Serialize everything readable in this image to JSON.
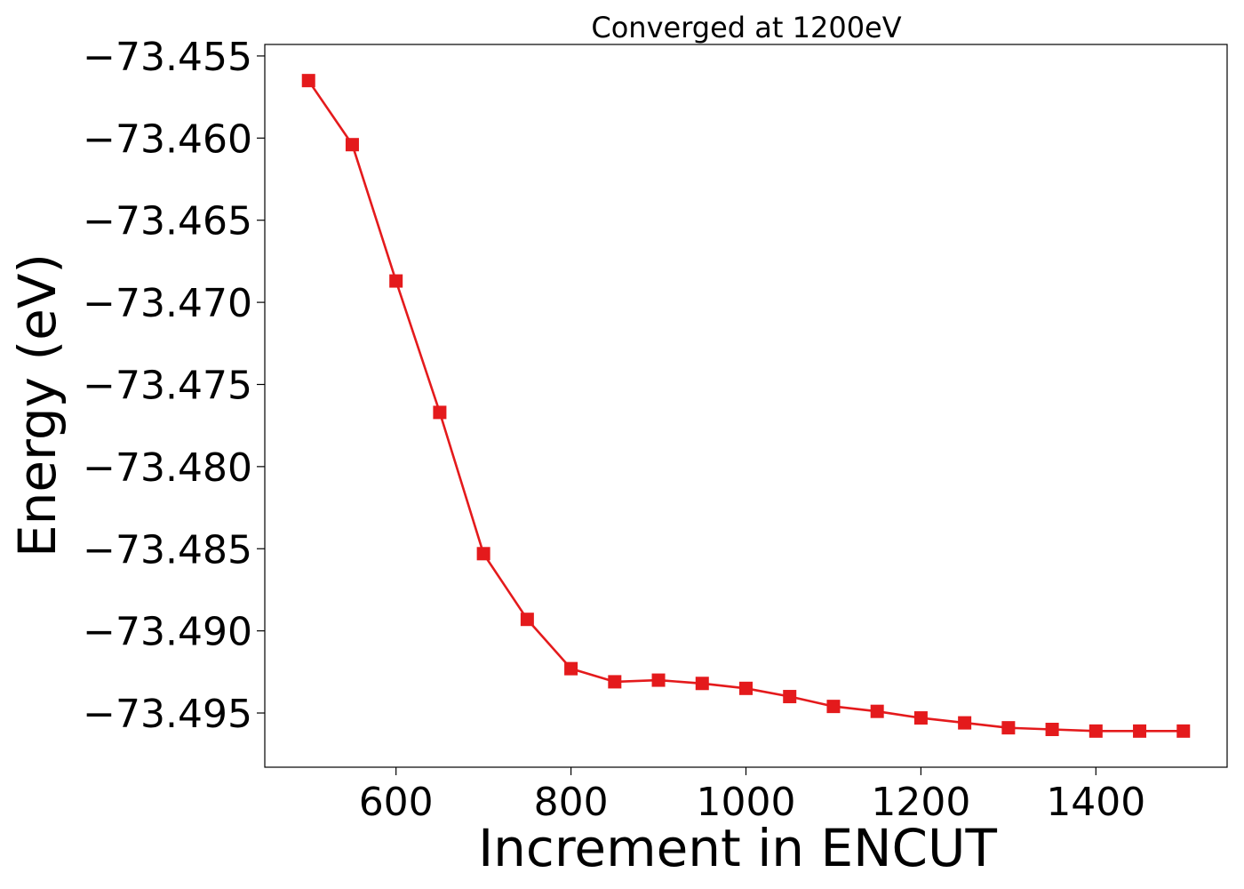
{
  "chart_data": {
    "type": "line",
    "title": "Converged at 1200eV",
    "xlabel": "Increment in ENCUT",
    "ylabel": "Energy (eV)",
    "xlim": [
      450,
      1550
    ],
    "ylim": [
      -73.4983,
      -73.4543
    ],
    "x_ticks": [
      600,
      800,
      1000,
      1200,
      1400
    ],
    "y_ticks": [
      -73.455,
      -73.46,
      -73.465,
      -73.47,
      -73.475,
      -73.48,
      -73.485,
      -73.49,
      -73.495
    ],
    "y_tick_labels": [
      "−73.455",
      "−73.460",
      "−73.465",
      "−73.470",
      "−73.475",
      "−73.480",
      "−73.485",
      "−73.490",
      "−73.495"
    ],
    "grid": false,
    "series": [
      {
        "color": "#e41a1c",
        "marker": "square",
        "x": [
          500,
          550,
          600,
          650,
          700,
          750,
          800,
          850,
          900,
          950,
          1000,
          1050,
          1100,
          1150,
          1200,
          1250,
          1300,
          1350,
          1400,
          1450,
          1500
        ],
        "y": [
          -73.4565,
          -73.4604,
          -73.4687,
          -73.4767,
          -73.4853,
          -73.4893,
          -73.4923,
          -73.4931,
          -73.493,
          -73.4932,
          -73.4935,
          -73.494,
          -73.4946,
          -73.4949,
          -73.4953,
          -73.4956,
          -73.4959,
          -73.496,
          -73.4961,
          -73.4961,
          -73.4961
        ]
      }
    ]
  }
}
